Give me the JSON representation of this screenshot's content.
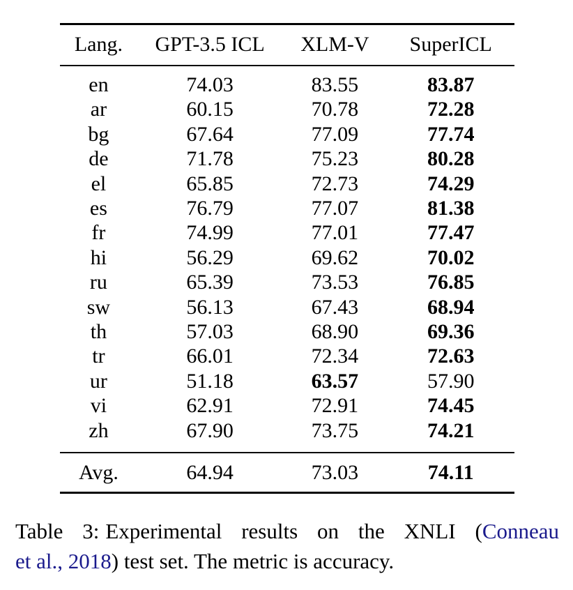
{
  "colors": {
    "background": "#ffffff",
    "text": "#000000",
    "citation_link": "#1a1a8c",
    "rule": "#000000"
  },
  "table": {
    "columns": [
      "Lang.",
      "GPT-3.5 ICL",
      "XLM-V",
      "SuperICL"
    ],
    "bold_note": "bold_col is the 0-based index into values of the bolded (best) value: 0=GPT-3.5 ICL, 1=XLM-V, 2=SuperICL",
    "rows": [
      {
        "lang": "en",
        "values": [
          "74.03",
          "83.55",
          "83.87"
        ],
        "bold_col": 2
      },
      {
        "lang": "ar",
        "values": [
          "60.15",
          "70.78",
          "72.28"
        ],
        "bold_col": 2
      },
      {
        "lang": "bg",
        "values": [
          "67.64",
          "77.09",
          "77.74"
        ],
        "bold_col": 2
      },
      {
        "lang": "de",
        "values": [
          "71.78",
          "75.23",
          "80.28"
        ],
        "bold_col": 2
      },
      {
        "lang": "el",
        "values": [
          "65.85",
          "72.73",
          "74.29"
        ],
        "bold_col": 2
      },
      {
        "lang": "es",
        "values": [
          "76.79",
          "77.07",
          "81.38"
        ],
        "bold_col": 2
      },
      {
        "lang": "fr",
        "values": [
          "74.99",
          "77.01",
          "77.47"
        ],
        "bold_col": 2
      },
      {
        "lang": "hi",
        "values": [
          "56.29",
          "69.62",
          "70.02"
        ],
        "bold_col": 2
      },
      {
        "lang": "ru",
        "values": [
          "65.39",
          "73.53",
          "76.85"
        ],
        "bold_col": 2
      },
      {
        "lang": "sw",
        "values": [
          "56.13",
          "67.43",
          "68.94"
        ],
        "bold_col": 2
      },
      {
        "lang": "th",
        "values": [
          "57.03",
          "68.90",
          "69.36"
        ],
        "bold_col": 2
      },
      {
        "lang": "tr",
        "values": [
          "66.01",
          "72.34",
          "72.63"
        ],
        "bold_col": 2
      },
      {
        "lang": "ur",
        "values": [
          "51.18",
          "63.57",
          "57.90"
        ],
        "bold_col": 1
      },
      {
        "lang": "vi",
        "values": [
          "62.91",
          "72.91",
          "74.45"
        ],
        "bold_col": 2
      },
      {
        "lang": "zh",
        "values": [
          "67.90",
          "73.75",
          "74.21"
        ],
        "bold_col": 2
      }
    ],
    "avg": {
      "lang": "Avg.",
      "values": [
        "64.94",
        "73.03",
        "74.11"
      ],
      "bold_col": 2
    }
  },
  "caption": {
    "label": "Table 3:",
    "text_before_citation": "Experimental results on the XNLI (",
    "citation_part1": "Conneau",
    "citation_part2": "et al., 2018",
    "text_after_citation": ") test set. The metric is accuracy.",
    "full_text": "Table 3: Experimental results on the XNLI (Conneau et al., 2018) test set. The metric is accuracy."
  }
}
